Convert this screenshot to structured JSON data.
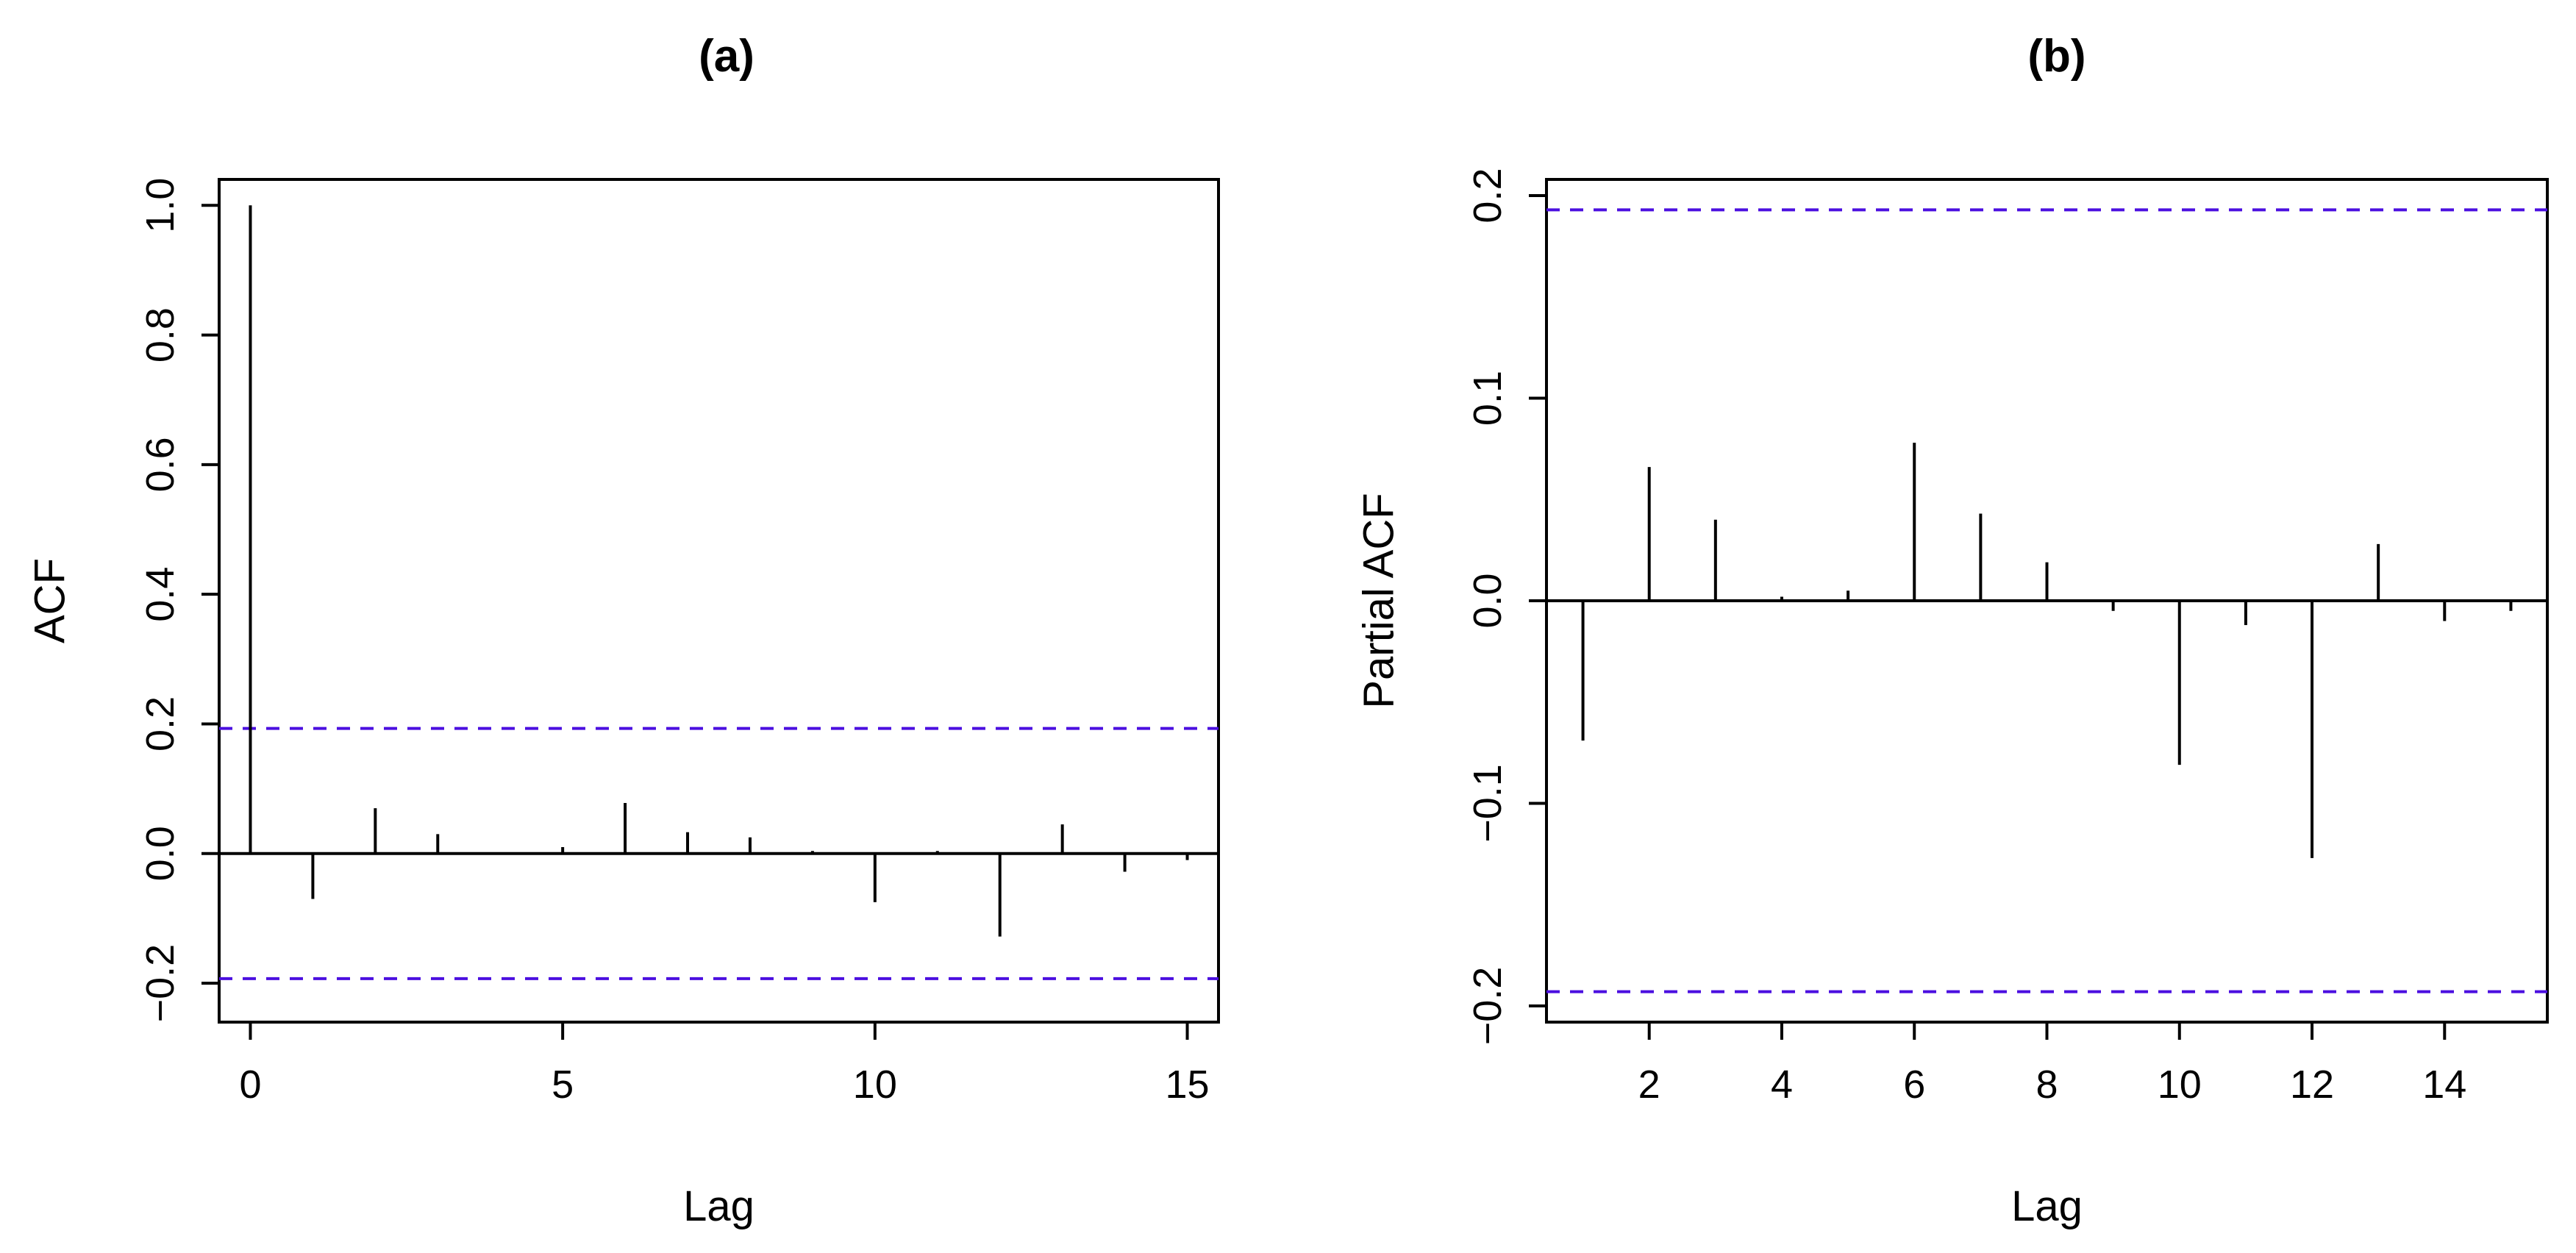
{
  "colors": {
    "ci_line": "#4B0FE0",
    "spike": "#000000"
  },
  "chart_data": [
    {
      "type": "bar",
      "title": "(a)",
      "xlabel": "Lag",
      "ylabel": "ACF",
      "xlim": [
        -0.5,
        15.5
      ],
      "ylim": [
        -0.26,
        1.04
      ],
      "xticks": [
        0,
        5,
        10,
        15
      ],
      "yticks": [
        -0.2,
        0.0,
        0.2,
        0.4,
        0.6,
        0.8,
        1.0
      ],
      "ytick_labels": [
        "−0.2",
        "0.0",
        "0.2",
        "0.4",
        "0.6",
        "0.8",
        "1.0"
      ],
      "ci": 0.193,
      "lags": [
        0,
        1,
        2,
        3,
        4,
        5,
        6,
        7,
        8,
        9,
        10,
        11,
        12,
        13,
        14,
        15
      ],
      "values": [
        1.0,
        -0.07,
        0.07,
        0.03,
        0.002,
        0.01,
        0.078,
        0.033,
        0.025,
        0.004,
        -0.075,
        0.004,
        -0.128,
        0.045,
        -0.028,
        -0.01
      ]
    },
    {
      "type": "bar",
      "title": "(b)",
      "xlabel": "Lag",
      "ylabel": "Partial ACF",
      "xlim": [
        0.45,
        15.55
      ],
      "ylim": [
        -0.208,
        0.208
      ],
      "xticks": [
        2,
        4,
        6,
        8,
        10,
        12,
        14
      ],
      "yticks": [
        -0.2,
        -0.1,
        0.0,
        0.1,
        0.2
      ],
      "ytick_labels": [
        "−0.2",
        "−0.1",
        "0.0",
        "0.1",
        "0.2"
      ],
      "ci": 0.193,
      "lags": [
        1,
        2,
        3,
        4,
        5,
        6,
        7,
        8,
        9,
        10,
        11,
        12,
        13,
        14,
        15
      ],
      "values": [
        -0.069,
        0.066,
        0.04,
        0.002,
        0.005,
        0.078,
        0.043,
        0.019,
        -0.005,
        -0.081,
        -0.012,
        -0.127,
        0.028,
        -0.01,
        -0.005
      ]
    }
  ]
}
